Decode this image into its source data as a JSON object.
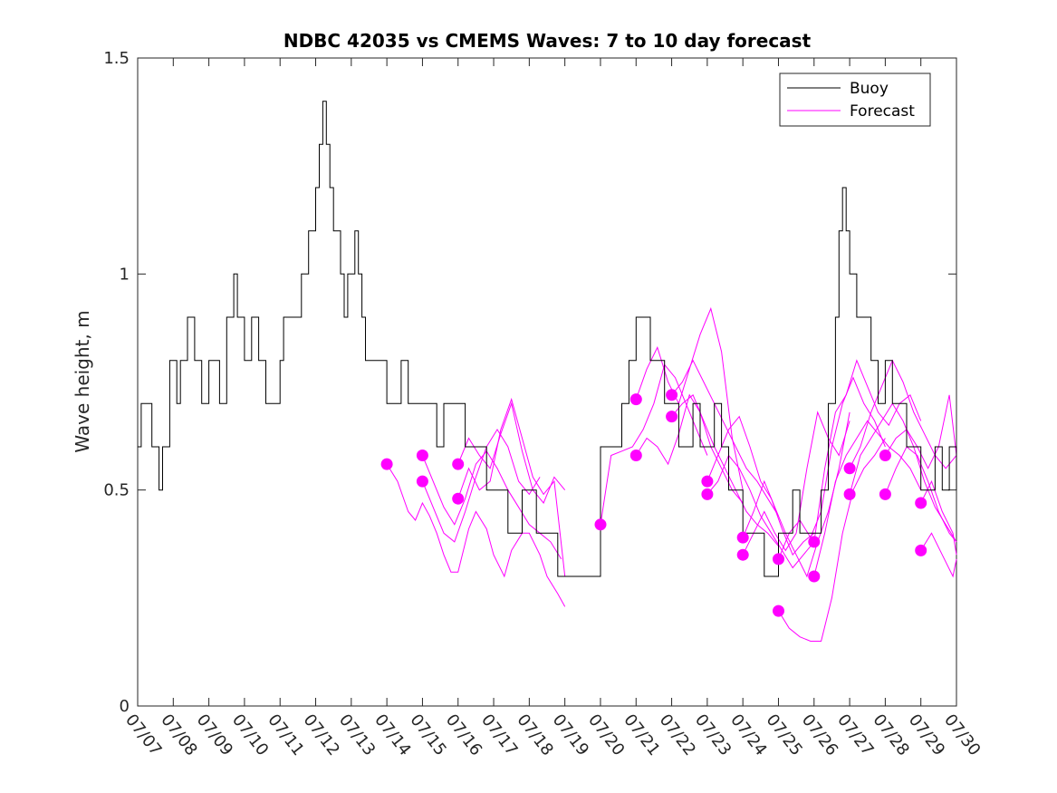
{
  "chart_data": {
    "type": "line",
    "title": "NDBC 42035 vs CMEMS Waves: 7 to 10 day forecast",
    "xlabel": "",
    "ylabel": "Wave height, m",
    "ylim": [
      0,
      1.5
    ],
    "yticks": [
      "0",
      "0.5",
      "1",
      "1.5"
    ],
    "ytick_values": [
      0,
      0.5,
      1,
      1.5
    ],
    "xlim_days": [
      7,
      30
    ],
    "xticks": [
      "07/07",
      "07/08",
      "07/09",
      "07/10",
      "07/11",
      "07/12",
      "07/13",
      "07/14",
      "07/15",
      "07/16",
      "07/17",
      "07/18",
      "07/19",
      "07/20",
      "07/21",
      "07/22",
      "07/23",
      "07/24",
      "07/25",
      "07/26",
      "07/27",
      "07/28",
      "07/29",
      "07/30"
    ],
    "legend": {
      "placement": "top-right",
      "entries": [
        {
          "label": "Buoy",
          "color": "#000000"
        },
        {
          "label": "Forecast",
          "color": "#ff00ff"
        }
      ]
    },
    "colors": {
      "buoy": "#000000",
      "forecast": "#ff00ff"
    },
    "buoy": {
      "name": "Buoy",
      "x_day": [
        7.0,
        7.1,
        7.2,
        7.4,
        7.5,
        7.6,
        7.7,
        7.8,
        7.9,
        8.0,
        8.1,
        8.2,
        8.4,
        8.6,
        8.8,
        9.0,
        9.2,
        9.3,
        9.5,
        9.7,
        9.8,
        10.0,
        10.2,
        10.4,
        10.6,
        10.8,
        11.0,
        11.1,
        11.2,
        11.4,
        11.6,
        11.8,
        12.0,
        12.1,
        12.2,
        12.3,
        12.4,
        12.5,
        12.6,
        12.7,
        12.8,
        12.9,
        13.0,
        13.1,
        13.2,
        13.3,
        13.4,
        13.5,
        13.6,
        13.8,
        14.0,
        14.2,
        14.4,
        14.6,
        14.8,
        15.0,
        15.2,
        15.4,
        15.6,
        15.8,
        16.0,
        16.2,
        16.4,
        16.6,
        16.8,
        17.0,
        17.2,
        17.4,
        17.6,
        17.8,
        18.0,
        18.2,
        18.4,
        18.6,
        18.8,
        19.0,
        20.0,
        20.2,
        20.4,
        20.6,
        20.8,
        21.0,
        21.2,
        21.4,
        21.6,
        21.8,
        22.0,
        22.2,
        22.4,
        22.6,
        22.8,
        23.0,
        23.2,
        23.4,
        23.6,
        23.8,
        24.0,
        24.2,
        24.4,
        24.6,
        24.8,
        25.0,
        25.2,
        25.4,
        25.6,
        25.8,
        26.0,
        26.2,
        26.4,
        26.6,
        26.7,
        26.8,
        26.9,
        27.0,
        27.2,
        27.4,
        27.6,
        27.8,
        28.0,
        28.2,
        28.4,
        28.6,
        28.8,
        29.0,
        29.2,
        29.4,
        29.6,
        29.8,
        30.0
      ],
      "values": [
        0.6,
        0.7,
        0.7,
        0.6,
        0.6,
        0.5,
        0.6,
        0.6,
        0.8,
        0.8,
        0.7,
        0.8,
        0.9,
        0.8,
        0.7,
        0.8,
        0.8,
        0.7,
        0.9,
        1.0,
        0.9,
        0.8,
        0.9,
        0.8,
        0.7,
        0.7,
        0.8,
        0.9,
        0.9,
        0.9,
        1.0,
        1.1,
        1.2,
        1.3,
        1.4,
        1.3,
        1.2,
        1.1,
        1.1,
        1.0,
        0.9,
        1.0,
        1.0,
        1.1,
        1.0,
        0.9,
        0.8,
        0.8,
        0.8,
        0.8,
        0.7,
        0.7,
        0.8,
        0.7,
        0.7,
        0.7,
        0.7,
        0.6,
        0.7,
        0.7,
        0.7,
        0.6,
        0.6,
        0.6,
        0.5,
        0.5,
        0.5,
        0.4,
        0.4,
        0.5,
        0.5,
        0.4,
        0.4,
        0.4,
        0.3,
        0.3,
        0.6,
        0.6,
        0.6,
        0.7,
        0.8,
        0.9,
        0.9,
        0.8,
        0.8,
        0.7,
        0.7,
        0.6,
        0.6,
        0.7,
        0.6,
        0.6,
        0.7,
        0.6,
        0.5,
        0.5,
        0.4,
        0.4,
        0.4,
        0.3,
        0.3,
        0.4,
        0.4,
        0.5,
        0.4,
        0.4,
        0.4,
        0.5,
        0.7,
        0.9,
        1.1,
        1.2,
        1.1,
        1.0,
        0.9,
        0.9,
        0.8,
        0.7,
        0.8,
        0.7,
        0.7,
        0.6,
        0.6,
        0.5,
        0.5,
        0.6,
        0.5,
        0.6,
        0.5
      ]
    },
    "forecast_series": [
      {
        "name": "",
        "x_day": [
          14.0,
          14.3,
          14.6,
          14.8,
          15.0,
          15.2,
          15.4,
          15.6,
          15.8,
          16.0,
          16.3,
          16.5,
          16.8,
          17.0,
          17.3,
          17.5,
          17.8,
          18.0,
          18.3,
          18.5,
          18.8,
          19.0
        ],
        "values": [
          0.56,
          0.52,
          0.45,
          0.43,
          0.47,
          0.44,
          0.4,
          0.35,
          0.31,
          0.31,
          0.41,
          0.45,
          0.41,
          0.35,
          0.3,
          0.36,
          0.4,
          0.4,
          0.35,
          0.3,
          0.26,
          0.23
        ]
      },
      {
        "name": "",
        "x_day": [
          15.0,
          15.3,
          15.6,
          15.9,
          16.2,
          16.5,
          16.8,
          17.1,
          17.4,
          17.7,
          18.0,
          18.3,
          18.6,
          18.9
        ],
        "values": [
          0.58,
          0.52,
          0.46,
          0.42,
          0.48,
          0.56,
          0.59,
          0.55,
          0.5,
          0.46,
          0.42,
          0.4,
          0.38,
          0.34
        ]
      },
      {
        "name": "",
        "x_day": [
          15.0,
          15.3,
          15.6,
          15.9,
          16.2,
          16.5,
          16.8,
          17.1,
          17.4,
          17.7,
          18.0,
          18.3
        ],
        "values": [
          0.52,
          0.46,
          0.4,
          0.38,
          0.45,
          0.53,
          0.6,
          0.64,
          0.6,
          0.52,
          0.49,
          0.53
        ]
      },
      {
        "name": "",
        "x_day": [
          16.0,
          16.3,
          16.6,
          16.9,
          17.2,
          17.5,
          17.8,
          18.1,
          18.4,
          18.7,
          19.0
        ],
        "values": [
          0.56,
          0.62,
          0.58,
          0.55,
          0.63,
          0.7,
          0.59,
          0.5,
          0.47,
          0.53,
          0.5
        ]
      },
      {
        "name": "",
        "x_day": [
          16.0,
          16.3,
          16.6,
          16.9,
          17.2,
          17.5,
          17.8,
          18.1,
          18.4,
          18.7,
          19.0
        ],
        "values": [
          0.48,
          0.55,
          0.5,
          0.52,
          0.64,
          0.71,
          0.62,
          0.53,
          0.49,
          0.52,
          0.3
        ]
      },
      {
        "name": "",
        "x_day": [
          20.0,
          20.3,
          20.6,
          20.9,
          21.2,
          21.5,
          21.8,
          22.1,
          22.4,
          22.7,
          23.0
        ],
        "values": [
          0.42,
          0.58,
          0.59,
          0.6,
          0.64,
          0.7,
          0.79,
          0.76,
          0.7,
          0.64,
          0.58
        ]
      },
      {
        "name": "",
        "x_day": [
          21.0,
          21.3,
          21.6,
          21.9,
          22.2,
          22.5,
          22.8,
          23.1,
          23.4,
          23.7,
          24.0
        ],
        "values": [
          0.71,
          0.78,
          0.83,
          0.75,
          0.7,
          0.78,
          0.86,
          0.92,
          0.82,
          0.62,
          0.5
        ]
      },
      {
        "name": "",
        "x_day": [
          21.0,
          21.3,
          21.6,
          21.9,
          22.2,
          22.5,
          22.8,
          23.1,
          23.4,
          23.7,
          24.0
        ],
        "values": [
          0.58,
          0.62,
          0.6,
          0.56,
          0.63,
          0.72,
          0.68,
          0.6,
          0.55,
          0.5,
          0.47
        ]
      },
      {
        "name": "",
        "x_day": [
          22.0,
          22.3,
          22.6,
          22.9,
          23.2,
          23.5,
          23.8,
          24.1,
          24.4,
          24.7,
          25.0
        ],
        "values": [
          0.72,
          0.75,
          0.8,
          0.75,
          0.7,
          0.65,
          0.6,
          0.55,
          0.52,
          0.48,
          0.44
        ]
      },
      {
        "name": "",
        "x_day": [
          22.0,
          22.3,
          22.6,
          22.9,
          23.2,
          23.5,
          23.8,
          24.1,
          24.4,
          24.7,
          25.0
        ],
        "values": [
          0.67,
          0.7,
          0.72,
          0.66,
          0.6,
          0.55,
          0.5,
          0.45,
          0.42,
          0.4,
          0.37
        ]
      },
      {
        "name": "",
        "x_day": [
          23.0,
          23.3,
          23.6,
          23.9,
          24.2,
          24.5,
          24.8,
          25.1,
          25.4,
          25.7,
          26.0
        ],
        "values": [
          0.52,
          0.58,
          0.64,
          0.67,
          0.6,
          0.52,
          0.48,
          0.41,
          0.35,
          0.38,
          0.4
        ]
      },
      {
        "name": "",
        "x_day": [
          23.0,
          23.3,
          23.6,
          23.9,
          24.2,
          24.5,
          24.8,
          25.1,
          25.4,
          25.7,
          26.0
        ],
        "values": [
          0.49,
          0.52,
          0.58,
          0.55,
          0.5,
          0.44,
          0.4,
          0.36,
          0.32,
          0.35,
          0.38
        ]
      },
      {
        "name": "",
        "x_day": [
          24.0,
          24.3,
          24.6,
          24.9,
          25.2,
          25.5,
          25.8,
          26.1,
          26.4,
          26.7,
          27.0
        ],
        "values": [
          0.39,
          0.45,
          0.52,
          0.46,
          0.4,
          0.35,
          0.3,
          0.38,
          0.45,
          0.55,
          0.68
        ]
      },
      {
        "name": "",
        "x_day": [
          24.0,
          24.3,
          24.6,
          24.9,
          25.2,
          25.5,
          25.8,
          26.1,
          26.4,
          26.7,
          27.0
        ],
        "values": [
          0.35,
          0.4,
          0.45,
          0.4,
          0.36,
          0.4,
          0.55,
          0.68,
          0.62,
          0.58,
          0.66
        ]
      },
      {
        "name": "",
        "x_day": [
          25.0,
          25.3,
          25.6,
          25.9,
          26.2,
          26.5,
          26.8,
          27.1,
          27.4,
          27.7,
          28.0
        ],
        "values": [
          0.34,
          0.4,
          0.43,
          0.39,
          0.45,
          0.6,
          0.7,
          0.76,
          0.7,
          0.66,
          0.6
        ]
      },
      {
        "name": "",
        "x_day": [
          25.0,
          25.3,
          25.6,
          25.9,
          26.2,
          26.5,
          26.8,
          27.1,
          27.4,
          27.7,
          28.0
        ],
        "values": [
          0.22,
          0.18,
          0.16,
          0.15,
          0.15,
          0.25,
          0.4,
          0.5,
          0.55,
          0.58,
          0.62
        ]
      },
      {
        "name": "",
        "x_day": [
          26.0,
          26.3,
          26.6,
          26.9,
          27.2,
          27.5,
          27.8,
          28.1,
          28.4,
          28.7,
          29.0
        ],
        "values": [
          0.38,
          0.55,
          0.68,
          0.72,
          0.8,
          0.74,
          0.68,
          0.65,
          0.7,
          0.72,
          0.66
        ]
      },
      {
        "name": "",
        "x_day": [
          26.0,
          26.3,
          26.6,
          26.9,
          27.2,
          27.5,
          27.8,
          28.1,
          28.4,
          28.7,
          29.0
        ],
        "values": [
          0.3,
          0.4,
          0.52,
          0.58,
          0.62,
          0.66,
          0.63,
          0.6,
          0.58,
          0.55,
          0.5
        ]
      },
      {
        "name": "",
        "x_day": [
          27.0,
          27.3,
          27.6,
          27.9,
          28.2,
          28.5,
          28.8,
          29.1,
          29.4,
          29.7,
          30.0
        ],
        "values": [
          0.55,
          0.6,
          0.68,
          0.74,
          0.8,
          0.75,
          0.68,
          0.63,
          0.58,
          0.55,
          0.58
        ]
      },
      {
        "name": "",
        "x_day": [
          27.0,
          27.3,
          27.6,
          27.9,
          28.2,
          28.5,
          28.8,
          29.1,
          29.4,
          29.7,
          30.0
        ],
        "values": [
          0.49,
          0.58,
          0.62,
          0.66,
          0.7,
          0.66,
          0.6,
          0.52,
          0.46,
          0.42,
          0.38
        ]
      },
      {
        "name": "",
        "x_day": [
          28.0,
          28.3,
          28.6,
          28.9,
          29.2,
          29.5,
          29.8,
          30.0
        ],
        "values": [
          0.58,
          0.62,
          0.64,
          0.6,
          0.55,
          0.6,
          0.72,
          0.58
        ]
      },
      {
        "name": "",
        "x_day": [
          28.0,
          28.3,
          28.6,
          28.9,
          29.2,
          29.5,
          29.8,
          30.0
        ],
        "values": [
          0.49,
          0.55,
          0.6,
          0.58,
          0.52,
          0.45,
          0.4,
          0.38
        ]
      },
      {
        "name": "",
        "x_day": [
          29.0,
          29.3,
          29.6,
          29.9,
          30.0
        ],
        "values": [
          0.47,
          0.52,
          0.45,
          0.4,
          0.35
        ]
      },
      {
        "name": "",
        "x_day": [
          29.0,
          29.3,
          29.6,
          29.9,
          30.0
        ],
        "values": [
          0.36,
          0.4,
          0.35,
          0.3,
          0.34
        ]
      }
    ],
    "forecast_start_points": [
      {
        "x_day": 14.0,
        "value": 0.56
      },
      {
        "x_day": 15.0,
        "value": 0.58
      },
      {
        "x_day": 15.0,
        "value": 0.52
      },
      {
        "x_day": 16.0,
        "value": 0.56
      },
      {
        "x_day": 16.0,
        "value": 0.48
      },
      {
        "x_day": 20.0,
        "value": 0.42
      },
      {
        "x_day": 21.0,
        "value": 0.71
      },
      {
        "x_day": 21.0,
        "value": 0.58
      },
      {
        "x_day": 22.0,
        "value": 0.72
      },
      {
        "x_day": 22.0,
        "value": 0.67
      },
      {
        "x_day": 23.0,
        "value": 0.52
      },
      {
        "x_day": 23.0,
        "value": 0.49
      },
      {
        "x_day": 24.0,
        "value": 0.39
      },
      {
        "x_day": 24.0,
        "value": 0.35
      },
      {
        "x_day": 25.0,
        "value": 0.34
      },
      {
        "x_day": 25.0,
        "value": 0.22
      },
      {
        "x_day": 26.0,
        "value": 0.38
      },
      {
        "x_day": 26.0,
        "value": 0.3
      },
      {
        "x_day": 27.0,
        "value": 0.55
      },
      {
        "x_day": 27.0,
        "value": 0.49
      },
      {
        "x_day": 28.0,
        "value": 0.58
      },
      {
        "x_day": 28.0,
        "value": 0.49
      },
      {
        "x_day": 29.0,
        "value": 0.47
      },
      {
        "x_day": 29.0,
        "value": 0.36
      }
    ]
  }
}
